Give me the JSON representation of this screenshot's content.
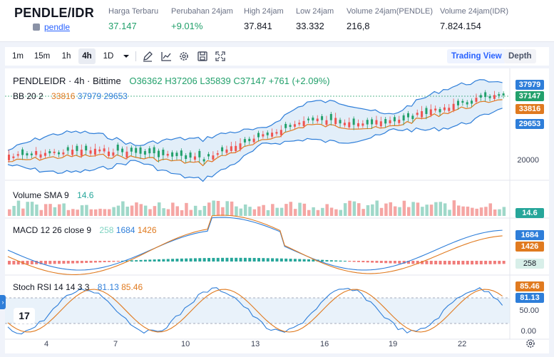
{
  "header": {
    "pair": "PENDLE/IDR",
    "sub_link": "pendle",
    "stats": [
      {
        "label": "Harga Terbaru",
        "value": "37.147",
        "positive": true
      },
      {
        "label": "Perubahan 24jam",
        "value": "+9.01%",
        "positive": true
      },
      {
        "label": "High 24jam",
        "value": "37.841",
        "positive": false
      },
      {
        "label": "Low 24jam",
        "value": "33.332",
        "positive": false
      },
      {
        "label": "Volume 24jam(PENDLE)",
        "value": "216,8",
        "positive": false
      },
      {
        "label": "Volume 24jam(IDR)",
        "value": "7.824.154",
        "positive": false
      }
    ]
  },
  "toolbar": {
    "intervals": [
      "1m",
      "15m",
      "1h",
      "4h",
      "1D"
    ],
    "active_interval": "4h",
    "icons": [
      "pencil-icon",
      "line-chart-icon",
      "gear-icon",
      "save-icon",
      "fullscreen-icon"
    ],
    "views": [
      "Trading View",
      "Depth"
    ],
    "active_view": "Trading View"
  },
  "chart": {
    "legend_main": "PENDLEIDR · 4h · Bittime",
    "ohlc": {
      "o": "O36362",
      "h": "H37206",
      "l": "L35839",
      "c": "C37147",
      "chg": "+761 (+2.09%)"
    },
    "bb": {
      "label": "BB 20 2",
      "v1": "33816",
      "v2": "37979",
      "v3": "29653"
    },
    "volume": {
      "label": "Volume SMA 9",
      "value": "14.6"
    },
    "macd": {
      "label": "MACD 12 26 close 9",
      "v1": "258",
      "v2": "1684",
      "v3": "1426"
    },
    "stoch": {
      "label": "Stoch RSI 14 14 3 3",
      "v1": "81.13",
      "v2": "85.46"
    },
    "price_labels": {
      "top": "37979",
      "last": "37147",
      "mid": "33816",
      "low": "29653",
      "axis": "20000"
    },
    "vol_label": "14.6",
    "macd_labels": {
      "a": "1684",
      "b": "1426",
      "c": "258"
    },
    "stoch_labels": {
      "a": "85.46",
      "b": "81.13",
      "ax1": "50.00",
      "ax2": "0.00"
    },
    "x_ticks": [
      "4",
      "7",
      "10",
      "13",
      "16",
      "19",
      "22"
    ],
    "colors": {
      "up": "#22a06b",
      "down": "#ef5350",
      "blue": "#2e7ed9",
      "orange": "#e07a1f",
      "band": "#dbeaf7"
    }
  }
}
